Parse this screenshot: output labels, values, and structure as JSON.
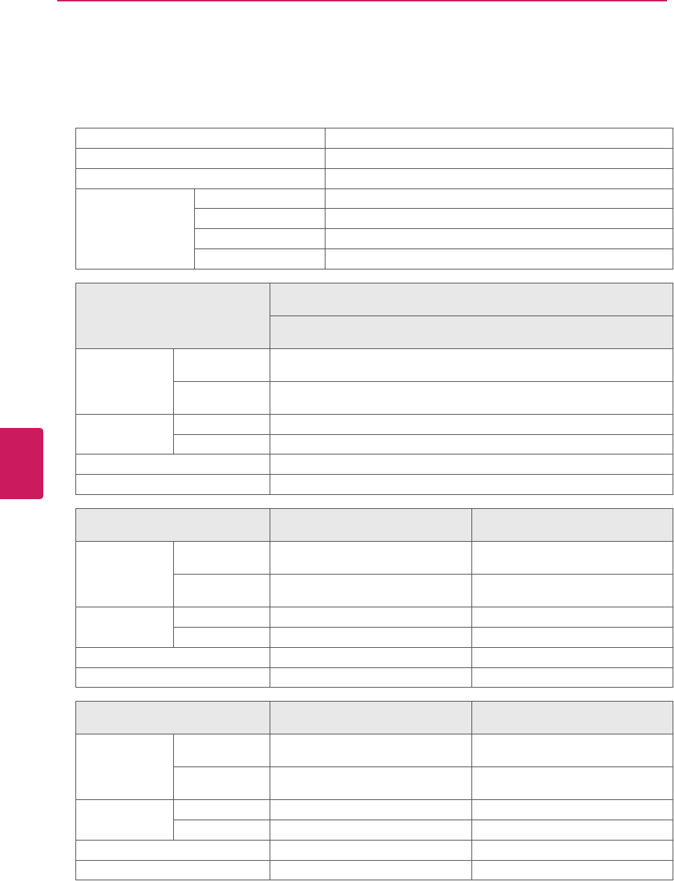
{
  "colors": {
    "accent": "#cc1a5e",
    "header_fill": "#e8e8e8",
    "border": "#4a4a4a"
  },
  "tables": [
    {
      "rows": [
        [
          "",
          ""
        ],
        [
          "",
          ""
        ],
        [
          "",
          ""
        ],
        [
          "",
          "",
          ""
        ],
        [
          "",
          ""
        ],
        [
          "",
          ""
        ],
        [
          "",
          ""
        ]
      ]
    },
    {
      "rows": [
        [
          "",
          ""
        ],
        [
          ""
        ],
        [
          "",
          "",
          ""
        ],
        [
          "",
          ""
        ],
        [
          "",
          "",
          ""
        ],
        [
          "",
          ""
        ],
        [
          "",
          ""
        ],
        [
          "",
          ""
        ]
      ]
    },
    {
      "rows": [
        [
          "",
          "",
          ""
        ],
        [
          "",
          "",
          "",
          ""
        ],
        [
          "",
          "",
          ""
        ],
        [
          "",
          "",
          "",
          ""
        ],
        [
          "",
          "",
          ""
        ],
        [
          "",
          "",
          ""
        ],
        [
          "",
          "",
          ""
        ]
      ]
    },
    {
      "rows": [
        [
          "",
          "",
          ""
        ],
        [
          "",
          "",
          "",
          ""
        ],
        [
          "",
          "",
          ""
        ],
        [
          "",
          "",
          "",
          ""
        ],
        [
          "",
          "",
          ""
        ],
        [
          "",
          "",
          ""
        ],
        [
          "",
          "",
          ""
        ]
      ]
    }
  ]
}
